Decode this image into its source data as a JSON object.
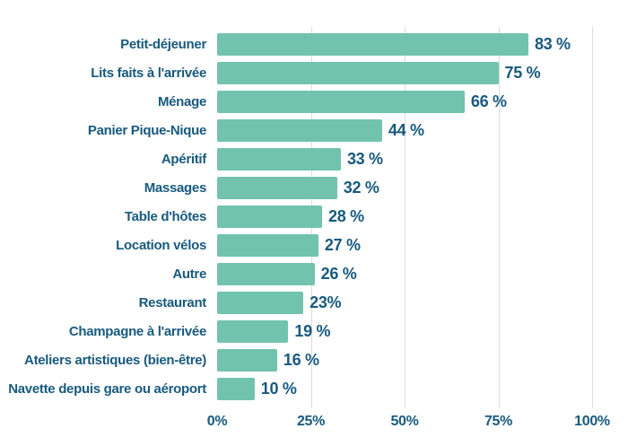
{
  "chart_data": {
    "type": "bar",
    "orientation": "horizontal",
    "title": "",
    "xlabel": "",
    "ylabel": "",
    "categories": [
      "Petit-déjeuner",
      "Lits faits à l'arrivée",
      "Ménage",
      "Panier Pique-Nique",
      "Apéritif",
      "Massages",
      "Table d'hôtes",
      "Location vélos",
      "Autre",
      "Restaurant",
      "Champagne à l'arrivée",
      "Ateliers artistiques (bien-être)",
      "Navette depuis gare ou aéroport"
    ],
    "values": [
      83,
      75,
      66,
      44,
      33,
      32,
      28,
      27,
      26,
      23,
      19,
      16,
      10
    ],
    "value_labels": [
      "83 %",
      "75 %",
      "66 %",
      "44 %",
      "33 %",
      "32 %",
      "28 %",
      "27 %",
      "26 %",
      "23%",
      "19 %",
      "16 %",
      "10 %"
    ],
    "x_ticks": [
      "0%",
      "25%",
      "50%",
      "75%",
      "100%"
    ],
    "x_tick_positions": [
      0,
      25,
      50,
      75,
      100
    ],
    "xlim": [
      0,
      100
    ],
    "grid": "vertical",
    "legend": "none",
    "bar_color": "#72c3ae",
    "label_color": "#185a7e",
    "gridline_color": "#dcdcdc",
    "background": "#ffffff"
  }
}
